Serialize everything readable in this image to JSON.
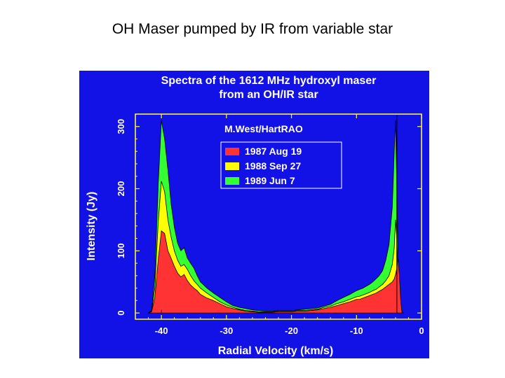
{
  "slide": {
    "title": "OH Maser pumped by IR from variable star"
  },
  "chart_data": {
    "type": "area",
    "title": "Spectra of the 1612 MHz hydroxyl maser",
    "subtitle": "from an OH/IR star",
    "credit": "M.West/HartRAO",
    "xlabel": "Radial Velocity (km/s)",
    "ylabel": "Intensity (Jy)",
    "xlim": [
      -44,
      0
    ],
    "ylim": [
      -10,
      320
    ],
    "xticks": [
      -40,
      -30,
      -20,
      -10,
      0
    ],
    "xtick_labels": [
      "-40",
      "-30",
      "-20",
      "-10",
      "0"
    ],
    "yticks": [
      0,
      100,
      200,
      300
    ],
    "ytick_labels": [
      "0",
      "100",
      "200",
      "300"
    ],
    "legend_position": "top-center",
    "grid": false,
    "colors": {
      "background": "#1212e6",
      "foreground": "#ffff33",
      "text": "#ffffff"
    },
    "x": [
      -42,
      -41.5,
      -41,
      -40.5,
      -40,
      -39.5,
      -39,
      -38.5,
      -38,
      -37.5,
      -37,
      -36.5,
      -36,
      -35.5,
      -35,
      -34.5,
      -34,
      -33,
      -32,
      -31,
      -30,
      -29,
      -28,
      -27,
      -26,
      -25,
      -24,
      -23,
      -22,
      -21,
      -20,
      -19,
      -18,
      -17,
      -16,
      -15,
      -14,
      -13,
      -12,
      -11,
      -10,
      -9.5,
      -9,
      -8.5,
      -8,
      -7.5,
      -7,
      -6.5,
      -6,
      -5.5,
      -5,
      -4.5,
      -4.2,
      -4,
      -3.8,
      -3.6,
      -3.4,
      -3.2,
      -3,
      -2.8
    ],
    "series": [
      {
        "name": "1987 Aug 19",
        "color": "#ff3333",
        "values": [
          0,
          2,
          25,
          85,
          132,
          128,
          100,
          88,
          75,
          64,
          58,
          62,
          52,
          45,
          40,
          36,
          30,
          24,
          20,
          15,
          10,
          7,
          5,
          3,
          2,
          1,
          1,
          1,
          2,
          2,
          2,
          3,
          3,
          4,
          5,
          7,
          9,
          12,
          15,
          18,
          22,
          22,
          24,
          26,
          28,
          30,
          32,
          35,
          38,
          42,
          46,
          50,
          55,
          62,
          72,
          88,
          60,
          20,
          0,
          0
        ]
      },
      {
        "name": "1988 Sep 27",
        "color": "#ffff00",
        "values": [
          0,
          3,
          40,
          145,
          212,
          195,
          150,
          122,
          100,
          85,
          75,
          78,
          70,
          60,
          52,
          46,
          40,
          32,
          25,
          18,
          13,
          9,
          6,
          4,
          3,
          2,
          2,
          2,
          3,
          3,
          3,
          4,
          4,
          5,
          6,
          9,
          11,
          15,
          18,
          22,
          26,
          27,
          29,
          31,
          33,
          36,
          38,
          42,
          46,
          52,
          60,
          78,
          105,
          150,
          120,
          60,
          10,
          0,
          0,
          0
        ]
      },
      {
        "name": "1989 Jun 7",
        "color": "#33ff33",
        "values": [
          0,
          4,
          60,
          205,
          310,
          280,
          230,
          175,
          138,
          112,
          100,
          105,
          88,
          80,
          72,
          60,
          50,
          40,
          32,
          25,
          18,
          12,
          9,
          7,
          5,
          4,
          3,
          3,
          4,
          4,
          4,
          5,
          6,
          7,
          8,
          11,
          14,
          20,
          25,
          30,
          36,
          38,
          40,
          43,
          46,
          50,
          55,
          60,
          68,
          85,
          110,
          170,
          260,
          310,
          200,
          90,
          20,
          0,
          0,
          0
        ]
      }
    ]
  }
}
